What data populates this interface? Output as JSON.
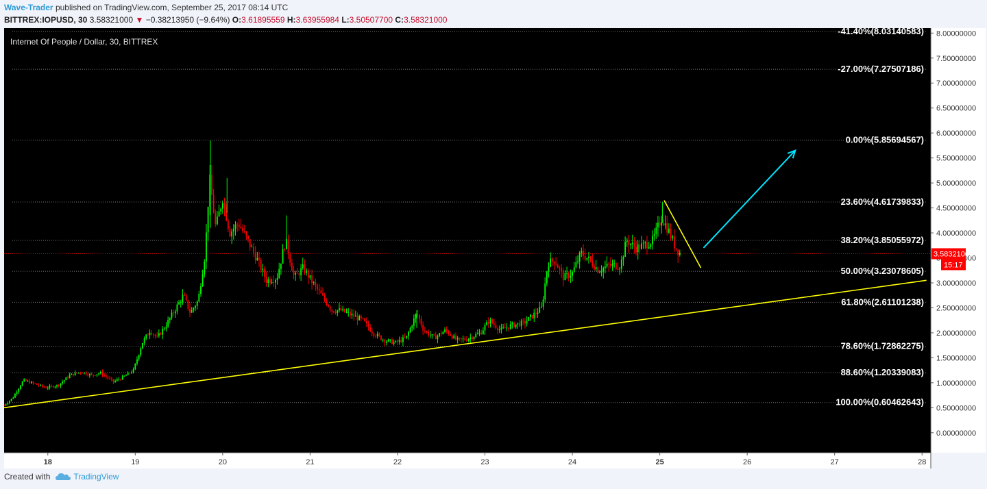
{
  "header": {
    "author": "Wave-Trader",
    "published": "published on TradingView.com, September 25, 2017 08:14 UTC",
    "symbol": "BITTREX:IOPUSD, 30",
    "last": "3.58321000",
    "change_arrow": "▼",
    "change": "−0.38213950 (−9.64%)",
    "o_label": "O:",
    "o_value": "3.61895559",
    "h_label": "H:",
    "h_value": "3.63955984",
    "l_label": "L:",
    "l_value": "3.50507700",
    "c_label": "C:",
    "c_value": "3.58321000"
  },
  "footer": {
    "created_with": "Created with",
    "brand": "TradingView",
    "logo_icon": "tradingview-cloud-icon"
  },
  "colors": {
    "background": "#000000",
    "up": "#00ff00",
    "down": "#ff0000",
    "trendline": "#ffff00",
    "arrow": "#00e5ff",
    "price_line": "#ff0000",
    "fib_line": "#7a7a7a"
  },
  "chart_data": {
    "type": "candlestick",
    "title": "Internet Of People / Dollar, 30, BITTREX",
    "x_tick_labels": [
      "18",
      "19",
      "20",
      "21",
      "22",
      "23",
      "24",
      "25",
      "26",
      "27",
      "28"
    ],
    "x_bold_ticks": [
      "18",
      "25"
    ],
    "xlim_days": [
      17.5,
      28.1
    ],
    "y_tick_labels": [
      "8.00000000",
      "7.50000000",
      "7.00000000",
      "6.50000000",
      "6.00000000",
      "5.50000000",
      "5.00000000",
      "4.50000000",
      "4.00000000",
      "3.50000000",
      "3.00000000",
      "2.50000000",
      "2.00000000",
      "1.50000000",
      "1.00000000",
      "0.50000000",
      "0.00000000"
    ],
    "ylim": [
      -0.4,
      8.1
    ],
    "price_series": [
      [
        17.5,
        0.55
      ],
      [
        17.6,
        0.7
      ],
      [
        17.72,
        1.05
      ],
      [
        17.85,
        0.98
      ],
      [
        17.97,
        0.9
      ],
      [
        18.12,
        0.95
      ],
      [
        18.25,
        1.15
      ],
      [
        18.38,
        1.22
      ],
      [
        18.5,
        1.15
      ],
      [
        18.6,
        1.2
      ],
      [
        18.75,
        1.02
      ],
      [
        18.85,
        1.1
      ],
      [
        18.98,
        1.25
      ],
      [
        19.08,
        1.8
      ],
      [
        19.17,
        2.05
      ],
      [
        19.25,
        1.9
      ],
      [
        19.35,
        2.15
      ],
      [
        19.45,
        2.45
      ],
      [
        19.55,
        2.75
      ],
      [
        19.63,
        2.4
      ],
      [
        19.72,
        2.65
      ],
      [
        19.8,
        3.6
      ],
      [
        19.85,
        5.1
      ],
      [
        19.92,
        4.1
      ],
      [
        20.0,
        4.7
      ],
      [
        20.08,
        4.0
      ],
      [
        20.18,
        4.2
      ],
      [
        20.3,
        3.8
      ],
      [
        20.4,
        3.45
      ],
      [
        20.5,
        3.05
      ],
      [
        20.62,
        3.1
      ],
      [
        20.72,
        3.85
      ],
      [
        20.82,
        3.1
      ],
      [
        20.92,
        3.3
      ],
      [
        21.05,
        2.95
      ],
      [
        21.15,
        2.7
      ],
      [
        21.25,
        2.45
      ],
      [
        21.35,
        2.45
      ],
      [
        21.48,
        2.35
      ],
      [
        21.6,
        2.25
      ],
      [
        21.72,
        2.0
      ],
      [
        21.85,
        1.85
      ],
      [
        21.98,
        1.8
      ],
      [
        22.1,
        1.9
      ],
      [
        22.22,
        2.4
      ],
      [
        22.3,
        2.05
      ],
      [
        22.42,
        1.9
      ],
      [
        22.55,
        2.05
      ],
      [
        22.68,
        1.85
      ],
      [
        22.8,
        1.88
      ],
      [
        22.95,
        2.0
      ],
      [
        23.05,
        2.25
      ],
      [
        23.18,
        2.05
      ],
      [
        23.3,
        2.15
      ],
      [
        23.45,
        2.2
      ],
      [
        23.55,
        2.35
      ],
      [
        23.65,
        2.5
      ],
      [
        23.72,
        3.4
      ],
      [
        23.8,
        3.45
      ],
      [
        23.9,
        3.1
      ],
      [
        24.0,
        3.2
      ],
      [
        24.1,
        3.6
      ],
      [
        24.2,
        3.45
      ],
      [
        24.3,
        3.25
      ],
      [
        24.42,
        3.35
      ],
      [
        24.55,
        3.35
      ],
      [
        24.62,
        3.85
      ],
      [
        24.72,
        3.7
      ],
      [
        24.82,
        3.75
      ],
      [
        24.92,
        3.85
      ],
      [
        25.02,
        4.3
      ],
      [
        25.1,
        4.05
      ],
      [
        25.18,
        3.7
      ],
      [
        25.24,
        3.58
      ]
    ],
    "trendline": [
      [
        17.5,
        0.5
      ],
      [
        28.05,
        3.05
      ]
    ],
    "breakout_trendline": [
      [
        25.05,
        4.65
      ],
      [
        25.47,
        3.3
      ]
    ],
    "projection_arrow": [
      [
        25.5,
        3.7
      ],
      [
        26.55,
        5.65
      ]
    ],
    "current_price": {
      "value": 3.58321,
      "label": "3.58321000",
      "countdown": "15:17"
    },
    "fib_levels": [
      {
        "label": "-41.40%(8.03140583)",
        "value": 8.03140583
      },
      {
        "label": "-27.00%(7.27507186)",
        "value": 7.27507186
      },
      {
        "label": "0.00%(5.85694567)",
        "value": 5.85694567
      },
      {
        "label": "23.60%(4.61739833)",
        "value": 4.61739833
      },
      {
        "label": "38.20%(3.85055972)",
        "value": 3.85055972
      },
      {
        "label": "50.00%(3.23078605)",
        "value": 3.23078605
      },
      {
        "label": "61.80%(2.61101238)",
        "value": 2.61101238
      },
      {
        "label": "78.60%(1.72862275)",
        "value": 1.72862275
      },
      {
        "label": "88.60%(1.20339083)",
        "value": 1.20339083
      },
      {
        "label": "100.00%(0.60462643)",
        "value": 0.60462643
      }
    ]
  }
}
